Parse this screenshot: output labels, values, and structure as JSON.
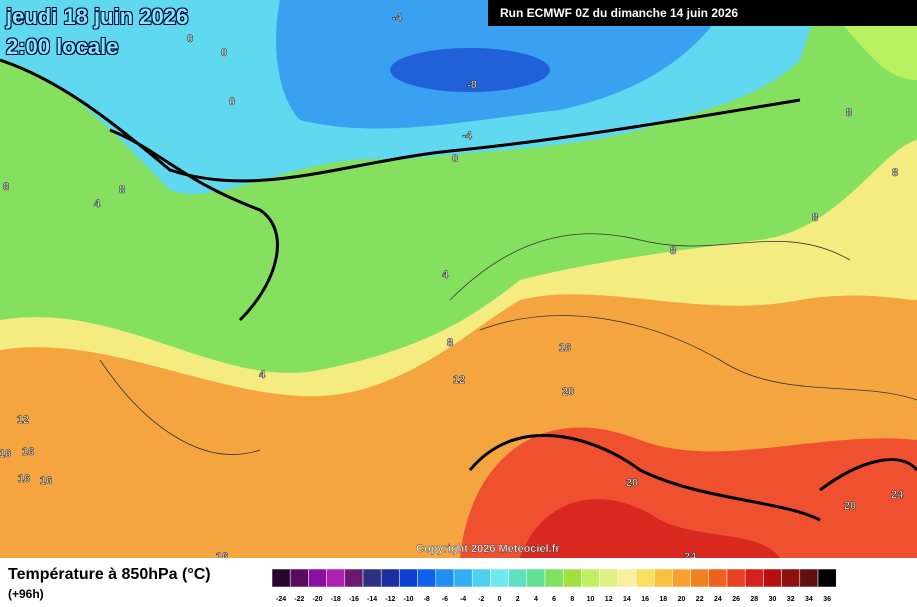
{
  "header": {
    "date": "jeudi 18 juin 2026",
    "time": "2:00 locale",
    "run": "Run ECMWF 0Z du dimanche 14 juin 2026"
  },
  "map": {
    "contour_labels": [
      -4,
      0,
      0,
      0,
      -8,
      -4,
      0,
      8,
      8,
      8,
      4,
      8,
      8,
      8,
      4,
      8,
      16,
      12,
      4,
      20,
      12,
      16,
      16,
      16,
      16,
      20,
      20,
      24,
      24,
      16
    ],
    "copyright": "Copyright 2026 Meteociel.fr"
  },
  "legend": {
    "title": "Température à 850hPa (°C)",
    "lead": "(+96h)",
    "ticks": [
      -24,
      -22,
      -20,
      -18,
      -16,
      -14,
      -12,
      -10,
      -8,
      -6,
      -4,
      -2,
      0,
      2,
      4,
      6,
      8,
      10,
      12,
      14,
      16,
      18,
      20,
      22,
      24,
      26,
      28,
      30,
      32,
      34,
      36
    ],
    "colors": [
      "#2a0530",
      "#5a0a60",
      "#8a10a0",
      "#b020b0",
      "#6a1a70",
      "#303080",
      "#1a30a0",
      "#1040d0",
      "#1060f0",
      "#2090f0",
      "#30b0f0",
      "#50d0f0",
      "#70e8f0",
      "#60e0c0",
      "#60e090",
      "#80e060",
      "#a0e040",
      "#c0f060",
      "#e0f080",
      "#f8f0a0",
      "#f8e060",
      "#f8c040",
      "#f8a030",
      "#f08020",
      "#f06020",
      "#e84020",
      "#d82020",
      "#b81010",
      "#901010",
      "#601010",
      "#000000"
    ]
  }
}
